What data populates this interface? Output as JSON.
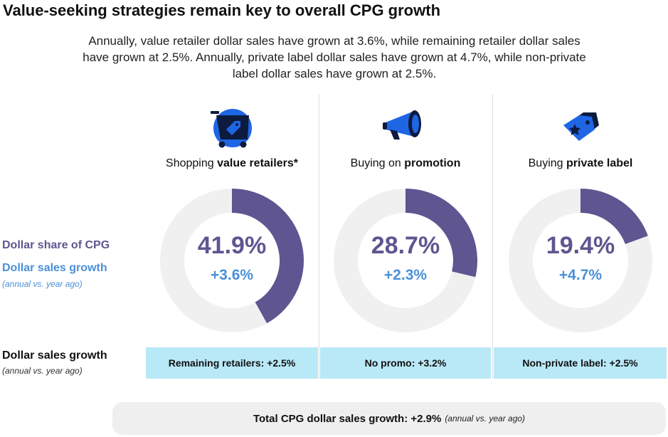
{
  "title": "Value-seeking strategies remain key to overall CPG growth",
  "subtitle": "Annually, value retailer dollar sales have grown at 3.6%, while remaining retailer dollar sales have grown at 2.5%. Annually, private label dollar sales have grown at 4.7%, while non-private label dollar sales have grown at 2.5%.",
  "legend": {
    "share_label": "Dollar share of CPG",
    "growth_label": "Dollar sales growth",
    "growth_note": "(annual vs. year ago)"
  },
  "comparison_row": {
    "label": "Dollar sales growth",
    "note": "(annual vs. year ago)"
  },
  "total": {
    "text": "Total CPG dollar sales growth: +2.9%",
    "note": "(annual vs. year ago)"
  },
  "colors": {
    "share": "#5f5590",
    "growth": "#4a90d9",
    "ring": "#f0f0f0",
    "comparison_bg": "#b9e8f7",
    "icon_blue": "#1f66e5",
    "icon_dark": "#0d1b3e"
  },
  "chart_data": {
    "type": "pie",
    "variant": "donut",
    "charts": [
      {
        "label_prefix": "Shopping ",
        "label_bold": "value retailers*",
        "icon": "shopping-cart-tag-icon",
        "share_label": "41.9%",
        "share_value": 41.9,
        "growth_label": "+3.6%",
        "growth_value": 3.6,
        "comparison_label": "Remaining retailers: +2.5%",
        "comparison_value": 2.5
      },
      {
        "label_prefix": "Buying on ",
        "label_bold": "promotion",
        "icon": "megaphone-icon",
        "share_label": "28.7%",
        "share_value": 28.7,
        "growth_label": "+2.3%",
        "growth_value": 2.3,
        "comparison_label": "No promo: +3.2%",
        "comparison_value": 3.2
      },
      {
        "label_prefix": "Buying ",
        "label_bold": "private label",
        "icon": "price-tag-star-icon",
        "share_label": "19.4%",
        "share_value": 19.4,
        "growth_label": "+4.7%",
        "growth_value": 4.7,
        "comparison_label": "Non-private label: +2.5%",
        "comparison_value": 2.5
      }
    ]
  }
}
